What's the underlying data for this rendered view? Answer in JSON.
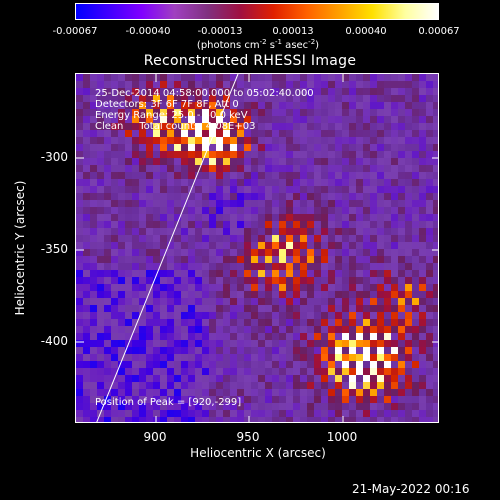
{
  "colorbar": {
    "tick_labels": [
      "-0.00067",
      "-0.00040",
      "-0.00013",
      "0.00013",
      "0.00040",
      "0.00067"
    ],
    "units_parts": [
      "(photons cm",
      "-2",
      " s",
      "-1",
      " asec",
      "-2",
      ")"
    ]
  },
  "plot": {
    "title": "Reconstructed RHESSI Image",
    "xlabel": "Heliocentric X (arcsec)",
    "ylabel": "Heliocentric Y (arcsec)",
    "xticks": [
      "900",
      "950",
      "1000"
    ],
    "yticks": [
      "-300",
      "-350",
      "-400"
    ],
    "x_range": [
      860,
      1044
    ],
    "y_range": [
      -450,
      -265
    ],
    "info_lines": [
      "25-Dec-2014 04:58:00.000 to 05:02:40.000",
      "Detectors: 3F 6F 7F 8F, Att 0",
      "Energy Range: 25.0 - 50.0 keV",
      "Clean     Total counts: 4.08E+03"
    ],
    "peak_text": "Position of Peak = [920,-299]",
    "limb_color": "#ffffff"
  },
  "footer": {
    "timestamp": "21-May-2022 00:16"
  },
  "colors": {
    "background": "#000000",
    "cmap_negative": [
      "#0000ff",
      "#4000e0",
      "#6a1fc0",
      "#7a3fb0",
      "#6a2f9f"
    ],
    "cmap_positive": [
      "#6a1f5f",
      "#9a0f3f",
      "#d02000",
      "#ff6000",
      "#ffb000",
      "#ffff80",
      "#ffffff"
    ]
  }
}
